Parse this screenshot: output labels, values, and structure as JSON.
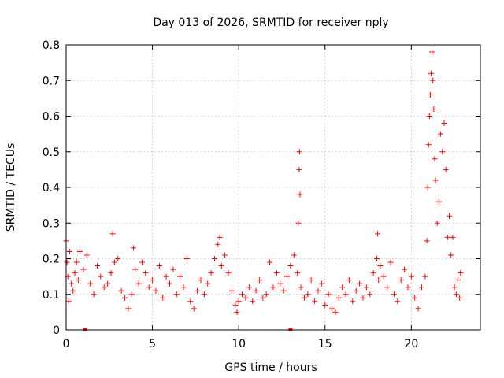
{
  "chart_data": {
    "type": "scatter",
    "title": "Day 013 of 2026, SRMTID for receiver nply",
    "xlabel": "GPS time / hours",
    "ylabel": "SRMTID / TECUs",
    "xlim": [
      0,
      24
    ],
    "ylim": [
      0,
      0.8
    ],
    "xticks": [
      0,
      5,
      10,
      15,
      20
    ],
    "xtick_labels": [
      "0",
      "5",
      "10",
      "15",
      "20"
    ],
    "yticks": [
      0,
      0.1,
      0.2,
      0.3,
      0.4,
      0.5,
      0.6,
      0.7,
      0.8
    ],
    "ytick_labels": [
      "0",
      "0.1",
      "0.2",
      "0.3",
      "0.4",
      "0.5",
      "0.6",
      "0.7",
      "0.8"
    ],
    "grid": true,
    "marker": "plus",
    "color": "#ff0000",
    "series": [
      {
        "name": "SRMTID",
        "x": [
          0.0,
          0.05,
          0.1,
          0.15,
          0.2,
          0.3,
          0.4,
          0.5,
          0.6,
          0.7,
          0.8,
          1.0,
          1.2,
          1.4,
          1.6,
          1.8,
          2.0,
          2.2,
          2.4,
          2.6,
          2.7,
          2.8,
          3.0,
          3.2,
          3.4,
          3.6,
          3.8,
          3.9,
          4.0,
          4.2,
          4.4,
          4.6,
          4.8,
          5.0,
          5.2,
          5.4,
          5.6,
          5.8,
          6.0,
          6.2,
          6.4,
          6.6,
          6.8,
          7.0,
          7.2,
          7.4,
          7.6,
          7.8,
          8.0,
          8.2,
          8.4,
          8.6,
          8.8,
          8.9,
          9.0,
          9.2,
          9.4,
          9.6,
          9.8,
          9.9,
          10.0,
          10.2,
          10.4,
          10.6,
          10.8,
          11.0,
          11.2,
          11.4,
          11.6,
          11.8,
          12.0,
          12.2,
          12.4,
          12.6,
          12.8,
          13.0,
          13.2,
          13.4,
          13.45,
          13.5,
          13.52,
          13.55,
          13.6,
          13.8,
          14.0,
          14.2,
          14.4,
          14.6,
          14.8,
          15.0,
          15.2,
          15.4,
          15.6,
          15.8,
          16.0,
          16.2,
          16.4,
          16.6,
          16.8,
          17.0,
          17.2,
          17.4,
          17.6,
          17.8,
          18.0,
          18.05,
          18.1,
          18.2,
          18.4,
          18.6,
          18.8,
          19.0,
          19.2,
          19.4,
          19.6,
          19.8,
          20.0,
          20.2,
          20.4,
          20.6,
          20.8,
          20.9,
          20.95,
          21.0,
          21.05,
          21.1,
          21.15,
          21.2,
          21.25,
          21.3,
          21.35,
          21.4,
          21.5,
          21.6,
          21.7,
          21.8,
          21.9,
          22.0,
          22.1,
          22.2,
          22.3,
          22.4,
          22.5,
          22.6,
          22.7,
          22.8,
          22.85
        ],
        "values": [
          0.25,
          0.19,
          0.15,
          0.08,
          0.22,
          0.13,
          0.11,
          0.16,
          0.19,
          0.14,
          0.22,
          0.17,
          0.21,
          0.13,
          0.1,
          0.18,
          0.15,
          0.12,
          0.13,
          0.16,
          0.27,
          0.19,
          0.2,
          0.11,
          0.09,
          0.06,
          0.1,
          0.23,
          0.17,
          0.13,
          0.19,
          0.16,
          0.12,
          0.14,
          0.11,
          0.18,
          0.09,
          0.15,
          0.13,
          0.17,
          0.1,
          0.15,
          0.12,
          0.2,
          0.08,
          0.06,
          0.11,
          0.14,
          0.1,
          0.13,
          0.16,
          0.2,
          0.24,
          0.26,
          0.18,
          0.21,
          0.16,
          0.11,
          0.07,
          0.05,
          0.08,
          0.1,
          0.09,
          0.12,
          0.08,
          0.11,
          0.14,
          0.09,
          0.1,
          0.19,
          0.12,
          0.16,
          0.13,
          0.11,
          0.15,
          0.18,
          0.21,
          0.16,
          0.3,
          0.45,
          0.5,
          0.38,
          0.12,
          0.09,
          0.1,
          0.14,
          0.08,
          0.11,
          0.13,
          0.07,
          0.1,
          0.06,
          0.05,
          0.09,
          0.12,
          0.1,
          0.14,
          0.08,
          0.11,
          0.13,
          0.09,
          0.12,
          0.1,
          0.16,
          0.2,
          0.27,
          0.14,
          0.18,
          0.15,
          0.12,
          0.19,
          0.1,
          0.08,
          0.14,
          0.17,
          0.12,
          0.15,
          0.09,
          0.06,
          0.12,
          0.15,
          0.25,
          0.4,
          0.52,
          0.6,
          0.66,
          0.72,
          0.78,
          0.7,
          0.62,
          0.48,
          0.42,
          0.3,
          0.36,
          0.55,
          0.5,
          0.58,
          0.45,
          0.26,
          0.32,
          0.21,
          0.26,
          0.12,
          0.1,
          0.14,
          0.09,
          0.16
        ],
        "zero_values_x": [
          1.1,
          13.0
        ]
      }
    ]
  }
}
